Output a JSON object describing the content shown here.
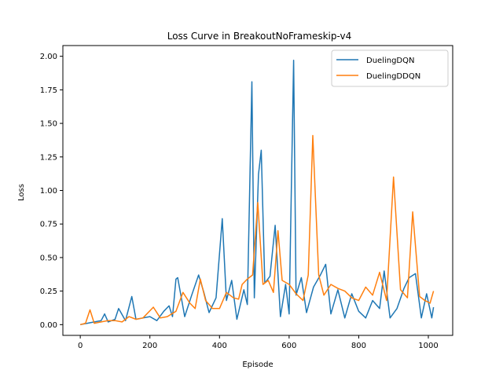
{
  "chart_data": {
    "type": "line",
    "title": "Loss Curve in BreakoutNoFrameskip-v4",
    "xlabel": "Episode",
    "ylabel": "Loss",
    "xlim": [
      -50,
      1070
    ],
    "ylim": [
      -0.08,
      2.08
    ],
    "xticks": [
      0,
      200,
      400,
      600,
      800,
      1000
    ],
    "yticks": [
      0.0,
      0.25,
      0.5,
      0.75,
      1.0,
      1.25,
      1.5,
      1.75,
      2.0
    ],
    "xtick_labels": [
      "0",
      "200",
      "400",
      "600",
      "800",
      "1000"
    ],
    "ytick_labels": [
      "0.00",
      "0.25",
      "0.50",
      "0.75",
      "1.00",
      "1.25",
      "1.50",
      "1.75",
      "2.00"
    ],
    "grid": false,
    "legend_position": "top-right",
    "series": [
      {
        "name": "DuelingDQN",
        "color": "#1f77b4",
        "x": [
          0,
          20,
          40,
          60,
          70,
          80,
          100,
          110,
          130,
          148,
          160,
          180,
          200,
          220,
          240,
          255,
          265,
          275,
          280,
          300,
          320,
          340,
          355,
          370,
          390,
          408,
          420,
          435,
          450,
          470,
          480,
          493,
          500,
          512,
          520,
          530,
          545,
          560,
          575,
          590,
          600,
          613,
          620,
          635,
          650,
          670,
          690,
          705,
          720,
          740,
          760,
          780,
          800,
          820,
          840,
          860,
          873,
          890,
          910,
          930,
          945,
          963,
          980,
          995,
          1010,
          1015
        ],
        "y": [
          0.0,
          0.01,
          0.02,
          0.03,
          0.08,
          0.02,
          0.04,
          0.12,
          0.03,
          0.21,
          0.04,
          0.05,
          0.06,
          0.03,
          0.1,
          0.14,
          0.06,
          0.34,
          0.35,
          0.06,
          0.22,
          0.37,
          0.24,
          0.09,
          0.2,
          0.79,
          0.18,
          0.33,
          0.04,
          0.26,
          0.15,
          1.81,
          0.2,
          1.12,
          1.3,
          0.31,
          0.36,
          0.74,
          0.06,
          0.3,
          0.08,
          1.97,
          0.22,
          0.35,
          0.09,
          0.28,
          0.37,
          0.45,
          0.08,
          0.26,
          0.05,
          0.23,
          0.1,
          0.05,
          0.18,
          0.12,
          0.4,
          0.05,
          0.12,
          0.27,
          0.35,
          0.38,
          0.05,
          0.23,
          0.05,
          0.13
        ]
      },
      {
        "name": "DuelingDDQN",
        "color": "#ff7f0e",
        "x": [
          0,
          15,
          28,
          40,
          60,
          80,
          100,
          120,
          140,
          160,
          180,
          210,
          230,
          250,
          275,
          295,
          315,
          330,
          345,
          360,
          380,
          400,
          420,
          440,
          455,
          465,
          480,
          495,
          510,
          525,
          540,
          555,
          568,
          580,
          600,
          620,
          640,
          655,
          668,
          685,
          700,
          720,
          740,
          760,
          780,
          800,
          820,
          840,
          860,
          880,
          900,
          920,
          940,
          955,
          975,
          990,
          1005,
          1015
        ],
        "y": [
          0.0,
          0.01,
          0.11,
          0.01,
          0.02,
          0.03,
          0.03,
          0.02,
          0.06,
          0.04,
          0.05,
          0.13,
          0.05,
          0.06,
          0.1,
          0.24,
          0.16,
          0.12,
          0.34,
          0.18,
          0.12,
          0.12,
          0.24,
          0.2,
          0.19,
          0.3,
          0.34,
          0.37,
          0.91,
          0.3,
          0.33,
          0.24,
          0.7,
          0.33,
          0.3,
          0.23,
          0.18,
          0.37,
          1.41,
          0.37,
          0.22,
          0.3,
          0.27,
          0.25,
          0.2,
          0.18,
          0.28,
          0.22,
          0.39,
          0.18,
          1.1,
          0.26,
          0.2,
          0.84,
          0.21,
          0.18,
          0.16,
          0.25
        ]
      }
    ]
  }
}
